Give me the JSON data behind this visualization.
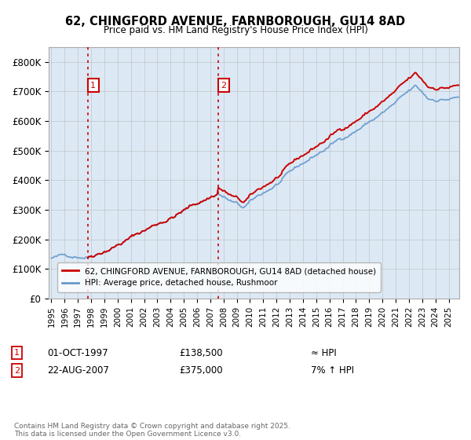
{
  "title_line1": "62, CHINGFORD AVENUE, FARNBOROUGH, GU14 8AD",
  "title_line2": "Price paid vs. HM Land Registry's House Price Index (HPI)",
  "legend_line1": "62, CHINGFORD AVENUE, FARNBOROUGH, GU14 8AD (detached house)",
  "legend_line2": "HPI: Average price, detached house, Rushmoor",
  "annotation1_label": "1",
  "annotation1_date": "01-OCT-1997",
  "annotation1_price": "£138,500",
  "annotation1_hpi": "≈ HPI",
  "annotation2_label": "2",
  "annotation2_date": "22-AUG-2007",
  "annotation2_price": "£375,000",
  "annotation2_hpi": "7% ↑ HPI",
  "footer": "Contains HM Land Registry data © Crown copyright and database right 2025.\nThis data is licensed under the Open Government Licence v3.0.",
  "price_color": "#cc0000",
  "hpi_color": "#6699cc",
  "plot_bg_color": "#dce9f5",
  "annotation_box_color": "#cc0000",
  "grid_color": "#bbbbbb",
  "ylim": [
    0,
    850000
  ],
  "xlim_start": 1994.8,
  "xlim_end": 2025.8,
  "yticks": [
    0,
    100000,
    200000,
    300000,
    400000,
    500000,
    600000,
    700000,
    800000
  ],
  "ytick_labels": [
    "£0",
    "£100K",
    "£200K",
    "£300K",
    "£400K",
    "£500K",
    "£600K",
    "£700K",
    "£800K"
  ]
}
